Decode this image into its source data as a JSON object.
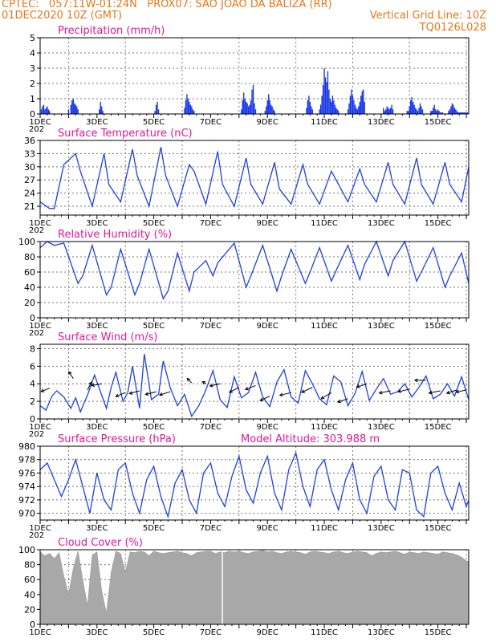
{
  "header": {
    "line1": "CPTEC:   057:11W-01:24N   PROX07: SAO JOAO DA BALIZA (RR)",
    "line2_left": "01DEC2020 10Z (GMT)",
    "line2_right": "Vertical Grid Line: 10Z",
    "line3_right": "TQ0126L028"
  },
  "colors": {
    "line": "#2040e0",
    "title": "#e0189a",
    "header": "#e8761a",
    "cloud": "#a8a8a8",
    "bar": "#1030e8"
  },
  "chart_data": [
    {
      "type": "bar",
      "title": "Precipitation (mm/h)",
      "ylim": [
        0,
        5
      ],
      "yticks": [
        0,
        1,
        2,
        3,
        4,
        5
      ],
      "xticks": [
        "1DEC",
        "3DEC",
        "5DEC",
        "7DEC",
        "9DEC",
        "11DEC",
        "13DEC",
        "15DEC"
      ],
      "x_start_year_fragment": "202",
      "hours": [
        1,
        2,
        3,
        4,
        5,
        6,
        7,
        8,
        24,
        26,
        27,
        28,
        29,
        30,
        31,
        32,
        50,
        51,
        52,
        53,
        97,
        98,
        99,
        100,
        122,
        123,
        124,
        125,
        126,
        127,
        128,
        129,
        130,
        170,
        171,
        172,
        173,
        174,
        175,
        176,
        177,
        178,
        179,
        180,
        181,
        182,
        190,
        191,
        192,
        193,
        194,
        195,
        196,
        197,
        198,
        225,
        226,
        227,
        228,
        229,
        230,
        236,
        237,
        238,
        239,
        240,
        241,
        242,
        243,
        244,
        245,
        246,
        247,
        248,
        249,
        250,
        251,
        252,
        260,
        261,
        262,
        263,
        264,
        265,
        266,
        267,
        268,
        269,
        270,
        271,
        272,
        273,
        274,
        290,
        291,
        292,
        293,
        294,
        295,
        296,
        297,
        298,
        310,
        311,
        312,
        313,
        314,
        315,
        316,
        317,
        318,
        319,
        320,
        321,
        322,
        323,
        330,
        331,
        332,
        333,
        334,
        335,
        336,
        337,
        338,
        339,
        340,
        345,
        346,
        347,
        348,
        349,
        350,
        351,
        352,
        353,
        354,
        355,
        356,
        357,
        358,
        359,
        360,
        361
      ],
      "values": [
        0.3,
        0.5,
        0.6,
        0.3,
        0.4,
        0.5,
        0.3,
        0.2,
        0.3,
        0.6,
        0.9,
        1.0,
        0.7,
        0.6,
        0.5,
        0.3,
        0.3,
        0.8,
        0.5,
        0.2,
        0.2,
        0.6,
        0.8,
        0.3,
        0.4,
        0.9,
        1.3,
        1.0,
        0.8,
        0.6,
        0.5,
        0.3,
        0.2,
        0.3,
        0.9,
        1.4,
        1.0,
        0.8,
        0.7,
        0.5,
        0.6,
        0.9,
        1.6,
        1.9,
        0.7,
        0.3,
        0.2,
        0.5,
        0.9,
        1.3,
        0.9,
        0.6,
        0.5,
        0.3,
        0.2,
        0.4,
        0.9,
        1.2,
        0.8,
        0.5,
        0.3,
        0.3,
        0.6,
        1.2,
        1.9,
        3.0,
        2.4,
        2.1,
        2.8,
        1.6,
        1.0,
        0.8,
        1.2,
        0.9,
        0.6,
        0.4,
        0.3,
        0.2,
        0.3,
        0.7,
        1.2,
        1.6,
        1.2,
        0.9,
        0.6,
        0.4,
        0.3,
        0.5,
        0.8,
        1.2,
        1.5,
        1.6,
        0.8,
        0.4,
        0.2,
        0.3,
        0.5,
        0.4,
        0.3,
        0.4,
        0.6,
        0.3,
        0.2,
        0.2,
        0.5,
        0.9,
        1.1,
        0.8,
        0.6,
        0.4,
        0.3,
        0.2,
        0.4,
        0.7,
        0.5,
        0.3,
        0.2,
        0.2,
        0.4,
        0.6,
        0.3,
        0.2,
        0.3,
        0.2,
        0.1,
        0.1,
        0.1,
        0.2,
        0.3,
        0.5,
        0.7,
        0.6,
        0.4,
        0.3,
        0.2,
        0.1,
        0.1,
        0.1,
        0.1,
        0.1,
        0.1,
        0.1,
        0.1,
        0.1
      ]
    },
    {
      "type": "line",
      "title": "Surface Temperature (nC)",
      "ylim": [
        19,
        36
      ],
      "yticks": [
        21,
        24,
        27,
        30,
        33,
        36
      ],
      "xticks": [
        "1DEC",
        "3DEC",
        "5DEC",
        "7DEC",
        "9DEC",
        "11DEC",
        "13DEC",
        "15DEC"
      ],
      "x_start_year_fragment": "202",
      "hours": [
        0,
        8,
        12,
        20,
        30,
        34,
        44,
        54,
        58,
        68,
        78,
        82,
        92,
        102,
        106,
        116,
        126,
        130,
        140,
        150,
        154,
        164,
        174,
        178,
        188,
        198,
        202,
        212,
        222,
        226,
        236,
        246,
        250,
        260,
        270,
        274,
        284,
        294,
        298,
        308,
        318,
        322,
        332,
        342,
        346,
        356,
        362
      ],
      "values": [
        22,
        20.5,
        20.5,
        30.5,
        33,
        29,
        21,
        33,
        26,
        22,
        34,
        28,
        21,
        34.5,
        28,
        21,
        30.5,
        29,
        21.5,
        33.5,
        26,
        21,
        32,
        26,
        21.5,
        31,
        25,
        21.5,
        30.5,
        26,
        21.5,
        29,
        27,
        22,
        29.5,
        26,
        22,
        31,
        26,
        21.5,
        32,
        26,
        21.5,
        31,
        26,
        22,
        30
      ]
    },
    {
      "type": "line",
      "title": "Relative Humidity (%)",
      "ylim": [
        0,
        100
      ],
      "yticks": [
        0,
        20,
        40,
        60,
        80,
        100
      ],
      "xticks": [
        "1DEC",
        "3DEC",
        "5DEC",
        "7DEC",
        "9DEC",
        "11DEC",
        "13DEC",
        "15DEC"
      ],
      "x_start_year_fragment": "202",
      "hours": [
        0,
        6,
        12,
        20,
        32,
        36,
        44,
        56,
        60,
        68,
        80,
        84,
        92,
        104,
        108,
        116,
        126,
        130,
        140,
        146,
        150,
        164,
        174,
        178,
        188,
        200,
        204,
        212,
        224,
        228,
        236,
        246,
        250,
        260,
        270,
        274,
        284,
        294,
        298,
        308,
        318,
        322,
        332,
        342,
        346,
        356,
        362
      ],
      "values": [
        92,
        100,
        95,
        98,
        45,
        55,
        95,
        30,
        40,
        90,
        30,
        45,
        90,
        25,
        35,
        85,
        35,
        60,
        75,
        55,
        72,
        98,
        40,
        55,
        95,
        35,
        55,
        90,
        45,
        60,
        92,
        48,
        62,
        95,
        50,
        70,
        100,
        55,
        75,
        100,
        48,
        60,
        92,
        40,
        55,
        85,
        45
      ]
    },
    {
      "type": "line",
      "title": "Surface Wind (m/s)",
      "ylim": [
        0,
        8.5
      ],
      "yticks": [
        0,
        2,
        4,
        6,
        8
      ],
      "xticks": [
        "1DEC",
        "3DEC",
        "5DEC",
        "7DEC",
        "9DEC",
        "11DEC",
        "13DEC",
        "15DEC"
      ],
      "x_start_year_fragment": "202",
      "hours": [
        0,
        5,
        10,
        14,
        20,
        26,
        30,
        34,
        40,
        46,
        52,
        56,
        60,
        64,
        70,
        74,
        78,
        84,
        88,
        94,
        100,
        104,
        110,
        116,
        122,
        128,
        134,
        140,
        146,
        152,
        158,
        164,
        170,
        176,
        182,
        188,
        194,
        200,
        206,
        212,
        218,
        224,
        230,
        236,
        242,
        248,
        254,
        260,
        266,
        272,
        278,
        284,
        290,
        296,
        302,
        308,
        314,
        320,
        326,
        332,
        338,
        344,
        350,
        356,
        362
      ],
      "values": [
        1.5,
        1.0,
        2.6,
        3.2,
        2.5,
        1.2,
        2.4,
        0.8,
        2.7,
        5.0,
        2.7,
        1.2,
        3.6,
        5.3,
        2.0,
        3.0,
        6.0,
        1.2,
        7.4,
        2.2,
        2.8,
        6.6,
        3.5,
        1.5,
        2.8,
        0.3,
        1.5,
        3.3,
        5.5,
        2.2,
        1.3,
        4.8,
        2.4,
        3.0,
        5.3,
        2.5,
        1.4,
        4.2,
        5.6,
        2.5,
        1.8,
        5.5,
        4.0,
        2.3,
        1.6,
        4.9,
        4.2,
        1.5,
        2.9,
        5.4,
        2.1,
        3.4,
        4.6,
        2.8,
        3.1,
        4.0,
        2.5,
        3.6,
        4.9,
        2.3,
        2.8,
        4.0,
        2.6,
        4.8,
        2.2
      ],
      "arrows": [
        {
          "hour": 8,
          "value": 3.5,
          "u": -0.75,
          "v": -0.3
        },
        {
          "hour": 28,
          "value": 4.6,
          "u": -0.4,
          "v": 0.6
        },
        {
          "hour": 40,
          "value": 3.3,
          "u": 0.35,
          "v": 0.7
        },
        {
          "hour": 52,
          "value": 4.0,
          "u": -0.9,
          "v": -0.15
        },
        {
          "hour": 72,
          "value": 3.0,
          "u": -0.85,
          "v": -0.35
        },
        {
          "hour": 84,
          "value": 3.2,
          "u": -0.9,
          "v": -0.25
        },
        {
          "hour": 98,
          "value": 3.1,
          "u": -0.95,
          "v": -0.25
        },
        {
          "hour": 110,
          "value": 3.1,
          "u": -0.95,
          "v": -0.3
        },
        {
          "hour": 128,
          "value": 4.1,
          "u": -0.4,
          "v": 0.4
        },
        {
          "hour": 140,
          "value": 4.0,
          "u": -0.3,
          "v": 0.2
        },
        {
          "hour": 152,
          "value": 4.0,
          "u": -0.9,
          "v": -0.2
        },
        {
          "hour": 168,
          "value": 3.6,
          "u": -0.85,
          "v": -0.45
        },
        {
          "hour": 182,
          "value": 3.8,
          "u": -0.9,
          "v": -0.35
        },
        {
          "hour": 194,
          "value": 2.6,
          "u": -0.85,
          "v": -0.4
        },
        {
          "hour": 212,
          "value": 3.0,
          "u": -1.0,
          "v": -0.25
        },
        {
          "hour": 230,
          "value": 3.6,
          "u": -0.95,
          "v": -0.45
        },
        {
          "hour": 246,
          "value": 3.0,
          "u": -0.9,
          "v": -0.55
        },
        {
          "hour": 260,
          "value": 2.3,
          "u": -0.9,
          "v": -0.3
        },
        {
          "hour": 276,
          "value": 4.0,
          "u": -0.9,
          "v": -0.3
        },
        {
          "hour": 296,
          "value": 3.2,
          "u": -1.0,
          "v": -0.2
        },
        {
          "hour": 312,
          "value": 3.4,
          "u": -1.0,
          "v": -0.25
        },
        {
          "hour": 326,
          "value": 4.4,
          "u": -1.0,
          "v": 0.0
        },
        {
          "hour": 338,
          "value": 3.2,
          "u": -1.0,
          "v": -0.2
        },
        {
          "hour": 352,
          "value": 3.3,
          "u": -0.9,
          "v": -0.3
        },
        {
          "hour": 360,
          "value": 3.3,
          "u": -0.9,
          "v": -0.2
        }
      ]
    },
    {
      "type": "line",
      "title": "Surface Pressure (hPa)",
      "extra_title": "Model Altitude: 303.988  m",
      "ylim": [
        969,
        980
      ],
      "yticks": [
        970,
        972,
        974,
        976,
        978,
        980
      ],
      "xticks": [
        "1DEC",
        "3DEC",
        "5DEC",
        "7DEC",
        "9DEC",
        "11DEC",
        "13DEC",
        "15DEC"
      ],
      "x_start_year_fragment": "202",
      "hours": [
        0,
        6,
        12,
        18,
        24,
        30,
        36,
        42,
        48,
        54,
        60,
        66,
        72,
        78,
        84,
        90,
        96,
        102,
        108,
        114,
        120,
        126,
        132,
        138,
        144,
        150,
        156,
        162,
        168,
        174,
        180,
        186,
        192,
        198,
        204,
        210,
        216,
        222,
        228,
        234,
        240,
        246,
        252,
        258,
        264,
        270,
        276,
        282,
        288,
        294,
        300,
        306,
        312,
        318,
        324,
        330,
        336,
        342,
        348,
        354,
        360,
        362
      ],
      "values": [
        976.5,
        977.5,
        975,
        972.5,
        975,
        978,
        974,
        970,
        976,
        972,
        970.5,
        976.5,
        977.5,
        973,
        970,
        975,
        977,
        972.5,
        969.5,
        974.5,
        976.5,
        972,
        970,
        976,
        977.5,
        973,
        971,
        975.5,
        978.5,
        973.5,
        971.5,
        976,
        978.5,
        973,
        970.5,
        976.5,
        979,
        974,
        971,
        976.5,
        978,
        973.5,
        970.5,
        975,
        977.5,
        972,
        970,
        975.5,
        977,
        972,
        970.5,
        976.5,
        976,
        970.5,
        969.5,
        976,
        977,
        973,
        970.5,
        974.5,
        971,
        972
      ]
    },
    {
      "type": "area",
      "title": "Cloud Cover (%)",
      "ylim": [
        0,
        100
      ],
      "yticks": [
        0,
        20,
        40,
        60,
        80,
        100
      ],
      "xticks": [
        "1DEC",
        "3DEC",
        "5DEC",
        "7DEC",
        "9DEC",
        "11DEC",
        "13DEC",
        "15DEC"
      ],
      "hours": [
        0,
        4,
        8,
        12,
        16,
        20,
        24,
        28,
        32,
        36,
        40,
        44,
        48,
        52,
        56,
        60,
        64,
        68,
        72,
        76,
        80,
        84,
        88,
        92,
        96,
        100,
        104,
        108,
        112,
        116,
        120,
        124,
        128,
        132,
        136,
        140,
        144,
        148,
        152,
        156,
        160,
        164,
        168,
        172,
        176,
        180,
        184,
        188,
        192,
        196,
        200,
        204,
        208,
        212,
        216,
        220,
        224,
        228,
        232,
        236,
        240,
        244,
        248,
        252,
        256,
        260,
        264,
        268,
        272,
        276,
        280,
        284,
        288,
        292,
        296,
        300,
        304,
        308,
        312,
        316,
        320,
        324,
        328,
        332,
        336,
        340,
        344,
        348,
        352,
        356,
        360,
        362
      ],
      "values": [
        97,
        92,
        95,
        88,
        96,
        65,
        40,
        75,
        98,
        60,
        25,
        93,
        97,
        45,
        15,
        70,
        98,
        95,
        70,
        97,
        96,
        98,
        97,
        92,
        98,
        96,
        95,
        96,
        97,
        98,
        96,
        95,
        92,
        96,
        97,
        98,
        98,
        95,
        97,
        96,
        98,
        97,
        98,
        96,
        95,
        97,
        98,
        99,
        97,
        98,
        96,
        95,
        97,
        98,
        97,
        96,
        94,
        97,
        98,
        97,
        96,
        95,
        97,
        98,
        96,
        95,
        97,
        98,
        97,
        96,
        92,
        95,
        97,
        96,
        97,
        98,
        96,
        94,
        97,
        96,
        95,
        97,
        96,
        95,
        94,
        97,
        96,
        95,
        93,
        90,
        85,
        84
      ]
    }
  ]
}
